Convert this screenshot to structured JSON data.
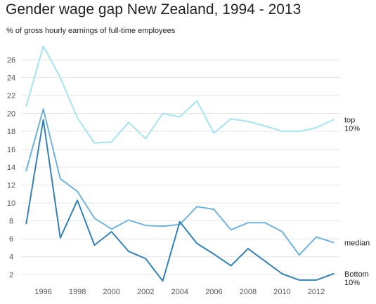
{
  "chart_data": {
    "type": "line",
    "title": "Gender wage gap New Zealand, 1994 - 2013",
    "subtitle": "% of gross hourly earnings of full-time employees",
    "x": [
      1995,
      1996,
      1997,
      1998,
      1999,
      2000,
      2001,
      2002,
      2003,
      2004,
      2005,
      2006,
      2007,
      2008,
      2009,
      2010,
      2011,
      2012,
      2013
    ],
    "xlim": [
      1994.7,
      2013.4
    ],
    "ylim": [
      1,
      27.8
    ],
    "x_ticks": [
      1996,
      1998,
      2000,
      2002,
      2004,
      2006,
      2008,
      2010,
      2012
    ],
    "y_ticks": [
      2,
      4,
      6,
      8,
      10,
      12,
      14,
      16,
      18,
      20,
      22,
      24,
      26
    ],
    "grid": "horizontal",
    "series": [
      {
        "label_lines": [
          "top",
          "10%"
        ],
        "color": "#a7e3f2",
        "values": [
          20.8,
          27.5,
          24.0,
          19.5,
          16.7,
          16.8,
          19.0,
          17.2,
          20.0,
          19.6,
          21.4,
          17.8,
          19.4,
          19.1,
          18.6,
          18.0,
          18.0,
          18.4,
          19.3
        ]
      },
      {
        "label_lines": [
          "median"
        ],
        "color": "#6fb3dc",
        "values": [
          13.6,
          20.5,
          12.7,
          11.3,
          8.3,
          7.1,
          8.1,
          7.5,
          7.4,
          7.6,
          9.6,
          9.3,
          7.0,
          7.8,
          7.8,
          6.8,
          4.2,
          6.2,
          5.6
        ]
      },
      {
        "label_lines": [
          "Bottom",
          "10%"
        ],
        "color": "#3382b5",
        "values": [
          7.7,
          19.3,
          6.1,
          10.3,
          5.3,
          6.8,
          4.6,
          3.8,
          1.3,
          7.9,
          5.5,
          4.3,
          3.0,
          4.9,
          3.5,
          2.1,
          1.4,
          1.4,
          2.1
        ]
      }
    ]
  }
}
